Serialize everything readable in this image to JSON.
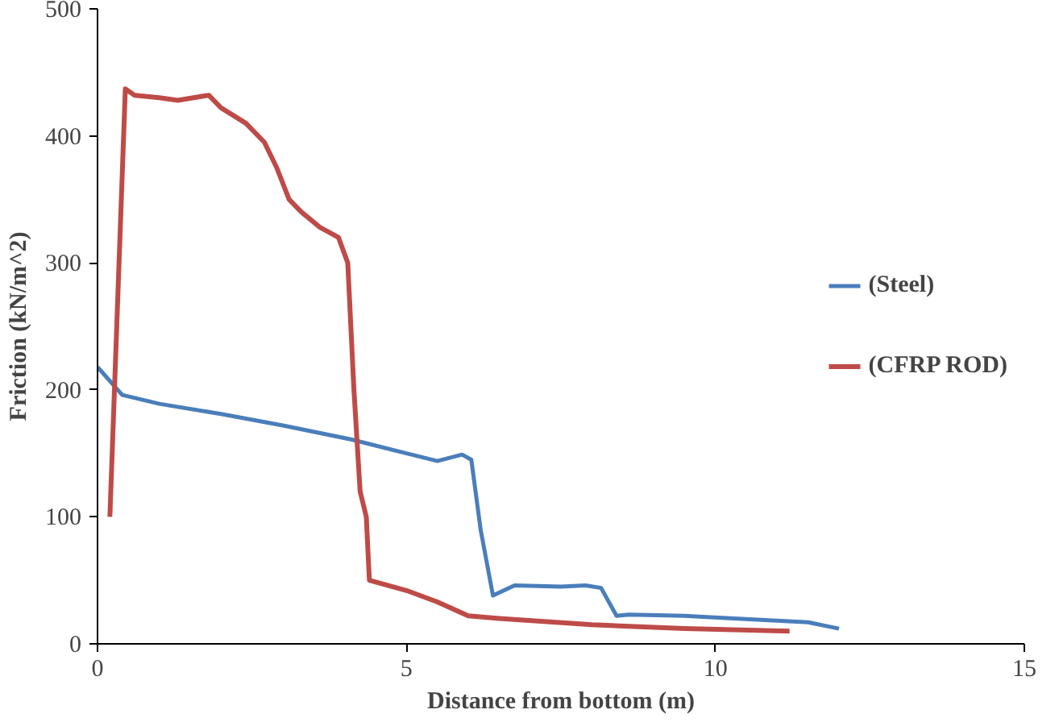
{
  "chart_data": {
    "type": "line",
    "xlabel": "Distance from bottom (m)",
    "ylabel": "Friction (kN/m^2)",
    "xlim": [
      0,
      15
    ],
    "xticks": [
      0,
      5,
      10,
      15
    ],
    "ylim": [
      0,
      500
    ],
    "yticks": [
      0,
      100,
      200,
      300,
      400,
      500
    ],
    "grid": false,
    "legend": "right",
    "line_style": "solid",
    "series": [
      {
        "name": "(Steel)",
        "color": "#4a7ebb",
        "x": [
          0,
          0.4,
          1,
          2,
          3,
          4.1,
          5,
          5.5,
          5.9,
          6.05,
          6.2,
          6.4,
          6.75,
          7.5,
          7.9,
          8.15,
          8.4,
          8.6,
          9.5,
          10.3,
          11.5,
          12
        ],
        "values": [
          218,
          196,
          189,
          181,
          172,
          161,
          150,
          144,
          149,
          145,
          90,
          38,
          46,
          45,
          46,
          44,
          22,
          23,
          22,
          20,
          17,
          12
        ]
      },
      {
        "name": "(CFRP ROD)",
        "color": "#be4b48",
        "x": [
          0.2,
          0.45,
          0.6,
          1.0,
          1.3,
          1.8,
          2.0,
          2.4,
          2.7,
          2.9,
          3.1,
          3.3,
          3.6,
          3.9,
          4.05,
          4.15,
          4.25,
          4.35,
          4.4,
          5.0,
          5.5,
          6.0,
          6.5,
          8,
          9.5,
          11.2
        ],
        "values": [
          100,
          437,
          432,
          430,
          428,
          432,
          422,
          410,
          395,
          375,
          350,
          340,
          328,
          320,
          300,
          200,
          120,
          100,
          50,
          42,
          33,
          22,
          20,
          15,
          12,
          10
        ]
      }
    ]
  }
}
